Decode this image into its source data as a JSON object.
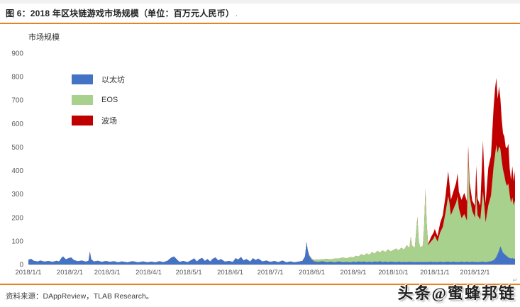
{
  "theme": {
    "accent_orange": "#E8821C",
    "tick_text": "#595959",
    "axis_line": "#C9C9C9"
  },
  "header": {
    "title": "图 6：2018 年区块链游戏市场规模（单位：百万元人民币）",
    "paragraph_mark": "،"
  },
  "legend": {
    "items": [
      {
        "label": "以太坊",
        "color": "#4472C4"
      },
      {
        "label": "EOS",
        "color": "#A9D18E"
      },
      {
        "label": "波场",
        "color": "#C00000"
      }
    ]
  },
  "footer": {
    "source_label": "资料来源：DAppReview，TLAB Research。",
    "paragraph_mark": "↵",
    "watermark": "头条@蜜蜂邦链"
  },
  "chart_data": {
    "type": "area",
    "stacked": true,
    "title": "2018 年区块链游戏市场规模",
    "unit": "百万元人民币",
    "ylabel": "市场规模",
    "xlabel": "",
    "grid": false,
    "legend_position": "upper-left-inside",
    "ylim": [
      0,
      900
    ],
    "y_ticks": [
      0,
      100,
      200,
      300,
      400,
      500,
      600,
      700,
      800,
      900
    ],
    "x_unit": "day_of_year_2018",
    "x_tick_days": [
      1,
      32,
      60,
      91,
      121,
      152,
      182,
      213,
      244,
      274,
      305,
      335
    ],
    "x_tick_labels": [
      "2018/1/1",
      "2018/2/1",
      "2018/3/1",
      "2018/4/1",
      "2018/5/1",
      "2018/6/1",
      "2018/7/1",
      "2018/8/1",
      "2018/9/1",
      "2018/10/1",
      "2018/11/1",
      "2018/12/1"
    ],
    "series": [
      {
        "name": "以太坊",
        "color": "#4472C4"
      },
      {
        "name": "EOS",
        "color": "#A9D18E"
      },
      {
        "name": "波场",
        "color": "#C00000"
      }
    ],
    "points_format": [
      "day_of_year",
      "以太坊",
      "EOS",
      "波场"
    ],
    "points": [
      [
        1,
        20,
        0,
        0
      ],
      [
        3,
        24,
        0,
        0
      ],
      [
        5,
        16,
        0,
        0
      ],
      [
        8,
        13,
        0,
        0
      ],
      [
        10,
        17,
        0,
        0
      ],
      [
        13,
        12,
        0,
        0
      ],
      [
        16,
        15,
        0,
        0
      ],
      [
        19,
        11,
        0,
        0
      ],
      [
        22,
        16,
        0,
        0
      ],
      [
        24,
        13,
        0,
        0
      ],
      [
        26,
        30,
        0,
        0
      ],
      [
        27,
        34,
        0,
        0
      ],
      [
        29,
        22,
        0,
        0
      ],
      [
        31,
        27,
        0,
        0
      ],
      [
        33,
        30,
        0,
        0
      ],
      [
        35,
        19,
        0,
        0
      ],
      [
        38,
        14,
        0,
        0
      ],
      [
        41,
        17,
        0,
        0
      ],
      [
        44,
        12,
        0,
        0
      ],
      [
        46,
        16,
        0,
        0
      ],
      [
        47,
        55,
        0,
        0
      ],
      [
        48,
        22,
        0,
        0
      ],
      [
        50,
        13,
        0,
        0
      ],
      [
        53,
        16,
        0,
        0
      ],
      [
        56,
        11,
        0,
        0
      ],
      [
        59,
        15,
        0,
        0
      ],
      [
        62,
        11,
        0,
        0
      ],
      [
        65,
        14,
        0,
        0
      ],
      [
        68,
        9,
        0,
        0
      ],
      [
        71,
        13,
        0,
        0
      ],
      [
        75,
        9,
        0,
        0
      ],
      [
        79,
        14,
        0,
        0
      ],
      [
        83,
        9,
        0,
        0
      ],
      [
        87,
        13,
        0,
        0
      ],
      [
        90,
        9,
        0,
        0
      ],
      [
        93,
        12,
        0,
        0
      ],
      [
        96,
        9,
        0,
        0
      ],
      [
        99,
        14,
        0,
        0
      ],
      [
        102,
        10,
        0,
        0
      ],
      [
        105,
        16,
        0,
        0
      ],
      [
        108,
        30,
        0,
        0
      ],
      [
        110,
        34,
        0,
        0
      ],
      [
        112,
        22,
        0,
        0
      ],
      [
        114,
        11,
        0,
        0
      ],
      [
        117,
        15,
        0,
        0
      ],
      [
        120,
        10,
        0,
        0
      ],
      [
        123,
        19,
        0,
        0
      ],
      [
        125,
        26,
        0,
        0
      ],
      [
        127,
        13,
        0,
        0
      ],
      [
        129,
        23,
        0,
        0
      ],
      [
        131,
        28,
        0,
        0
      ],
      [
        133,
        15,
        0,
        0
      ],
      [
        135,
        23,
        0,
        0
      ],
      [
        137,
        13,
        0,
        0
      ],
      [
        139,
        25,
        0,
        0
      ],
      [
        141,
        30,
        0,
        0
      ],
      [
        143,
        17,
        0,
        0
      ],
      [
        145,
        23,
        0,
        0
      ],
      [
        148,
        12,
        0,
        0
      ],
      [
        151,
        15,
        0,
        0
      ],
      [
        154,
        11,
        0,
        0
      ],
      [
        156,
        27,
        0,
        0
      ],
      [
        158,
        21,
        0,
        0
      ],
      [
        160,
        32,
        0,
        0
      ],
      [
        162,
        17,
        0,
        0
      ],
      [
        164,
        23,
        0,
        0
      ],
      [
        167,
        13,
        0,
        0
      ],
      [
        169,
        27,
        0,
        0
      ],
      [
        171,
        19,
        0,
        0
      ],
      [
        173,
        25,
        0,
        0
      ],
      [
        176,
        13,
        0,
        0
      ],
      [
        179,
        17,
        0,
        0
      ],
      [
        182,
        11,
        0,
        0
      ],
      [
        185,
        15,
        0,
        0
      ],
      [
        188,
        10,
        0,
        0
      ],
      [
        191,
        17,
        0,
        0
      ],
      [
        194,
        9,
        0,
        0
      ],
      [
        197,
        13,
        0,
        0
      ],
      [
        200,
        9,
        0,
        0
      ],
      [
        203,
        12,
        0,
        0
      ],
      [
        206,
        15,
        0,
        0
      ],
      [
        208,
        35,
        0,
        0
      ],
      [
        209,
        95,
        0,
        0
      ],
      [
        210,
        60,
        0,
        0
      ],
      [
        211,
        38,
        2,
        0
      ],
      [
        213,
        20,
        5,
        0
      ],
      [
        215,
        13,
        7,
        0
      ],
      [
        218,
        11,
        10,
        0
      ],
      [
        221,
        14,
        8,
        0
      ],
      [
        224,
        10,
        14,
        0
      ],
      [
        227,
        12,
        10,
        0
      ],
      [
        230,
        9,
        16,
        0
      ],
      [
        233,
        13,
        12,
        0
      ],
      [
        236,
        10,
        20,
        0
      ],
      [
        239,
        11,
        15,
        0
      ],
      [
        242,
        9,
        23,
        0
      ],
      [
        244,
        12,
        18,
        0
      ],
      [
        246,
        10,
        27,
        0
      ],
      [
        248,
        13,
        21,
        0
      ],
      [
        250,
        11,
        33,
        0
      ],
      [
        252,
        13,
        25,
        0
      ],
      [
        254,
        10,
        37,
        0
      ],
      [
        256,
        12,
        29,
        0
      ],
      [
        258,
        10,
        43,
        0
      ],
      [
        260,
        13,
        33,
        0
      ],
      [
        262,
        11,
        47,
        0
      ],
      [
        264,
        14,
        37,
        0
      ],
      [
        266,
        10,
        50,
        0
      ],
      [
        268,
        12,
        41,
        0
      ],
      [
        270,
        10,
        54,
        0
      ],
      [
        272,
        12,
        44,
        0
      ],
      [
        274,
        11,
        50,
        0
      ],
      [
        276,
        10,
        58,
        0
      ],
      [
        278,
        12,
        48,
        0
      ],
      [
        280,
        10,
        62,
        0
      ],
      [
        282,
        11,
        52,
        0
      ],
      [
        284,
        10,
        72,
        0
      ],
      [
        286,
        12,
        58,
        0
      ],
      [
        287,
        10,
        108,
        0
      ],
      [
        288,
        11,
        70,
        0
      ],
      [
        290,
        10,
        60,
        0
      ],
      [
        292,
        11,
        192,
        0
      ],
      [
        293,
        10,
        90,
        0
      ],
      [
        294,
        11,
        62,
        0
      ],
      [
        296,
        10,
        70,
        0
      ],
      [
        297,
        11,
        150,
        0
      ],
      [
        298,
        10,
        312,
        0
      ],
      [
        299,
        11,
        160,
        0
      ],
      [
        300,
        10,
        72,
        5
      ],
      [
        302,
        12,
        85,
        18
      ],
      [
        304,
        10,
        100,
        25
      ],
      [
        305,
        11,
        112,
        28
      ],
      [
        307,
        10,
        88,
        22
      ],
      [
        309,
        12,
        125,
        40
      ],
      [
        311,
        10,
        150,
        50
      ],
      [
        313,
        11,
        210,
        70
      ],
      [
        315,
        12,
        280,
        105
      ],
      [
        316,
        11,
        250,
        80
      ],
      [
        317,
        10,
        200,
        65
      ],
      [
        319,
        12,
        225,
        75
      ],
      [
        321,
        10,
        255,
        85
      ],
      [
        322,
        11,
        280,
        98
      ],
      [
        323,
        10,
        230,
        70
      ],
      [
        325,
        12,
        185,
        78
      ],
      [
        327,
        10,
        205,
        90
      ],
      [
        329,
        12,
        175,
        82
      ],
      [
        330,
        11,
        460,
        35
      ],
      [
        331,
        10,
        280,
        60
      ],
      [
        333,
        12,
        215,
        45
      ],
      [
        335,
        10,
        190,
        50
      ],
      [
        336,
        11,
        290,
        120
      ],
      [
        337,
        10,
        200,
        70
      ],
      [
        339,
        11,
        180,
        60
      ],
      [
        341,
        12,
        300,
        215
      ],
      [
        342,
        11,
        240,
        130
      ],
      [
        343,
        10,
        170,
        80
      ],
      [
        345,
        12,
        240,
        160
      ],
      [
        347,
        14,
        280,
        170
      ],
      [
        349,
        18,
        400,
        250
      ],
      [
        350,
        24,
        440,
        280
      ],
      [
        351,
        32,
        478,
        285
      ],
      [
        352,
        45,
        430,
        230
      ],
      [
        353,
        58,
        445,
        255
      ],
      [
        354,
        78,
        415,
        215
      ],
      [
        355,
        64,
        380,
        175
      ],
      [
        356,
        50,
        355,
        155
      ],
      [
        357,
        45,
        335,
        165
      ],
      [
        358,
        40,
        310,
        150
      ],
      [
        359,
        35,
        300,
        160
      ],
      [
        360,
        30,
        315,
        170
      ],
      [
        361,
        28,
        268,
        112
      ],
      [
        362,
        25,
        238,
        97
      ],
      [
        363,
        28,
        258,
        132
      ],
      [
        364,
        24,
        228,
        102
      ],
      [
        365,
        26,
        248,
        126
      ]
    ]
  }
}
